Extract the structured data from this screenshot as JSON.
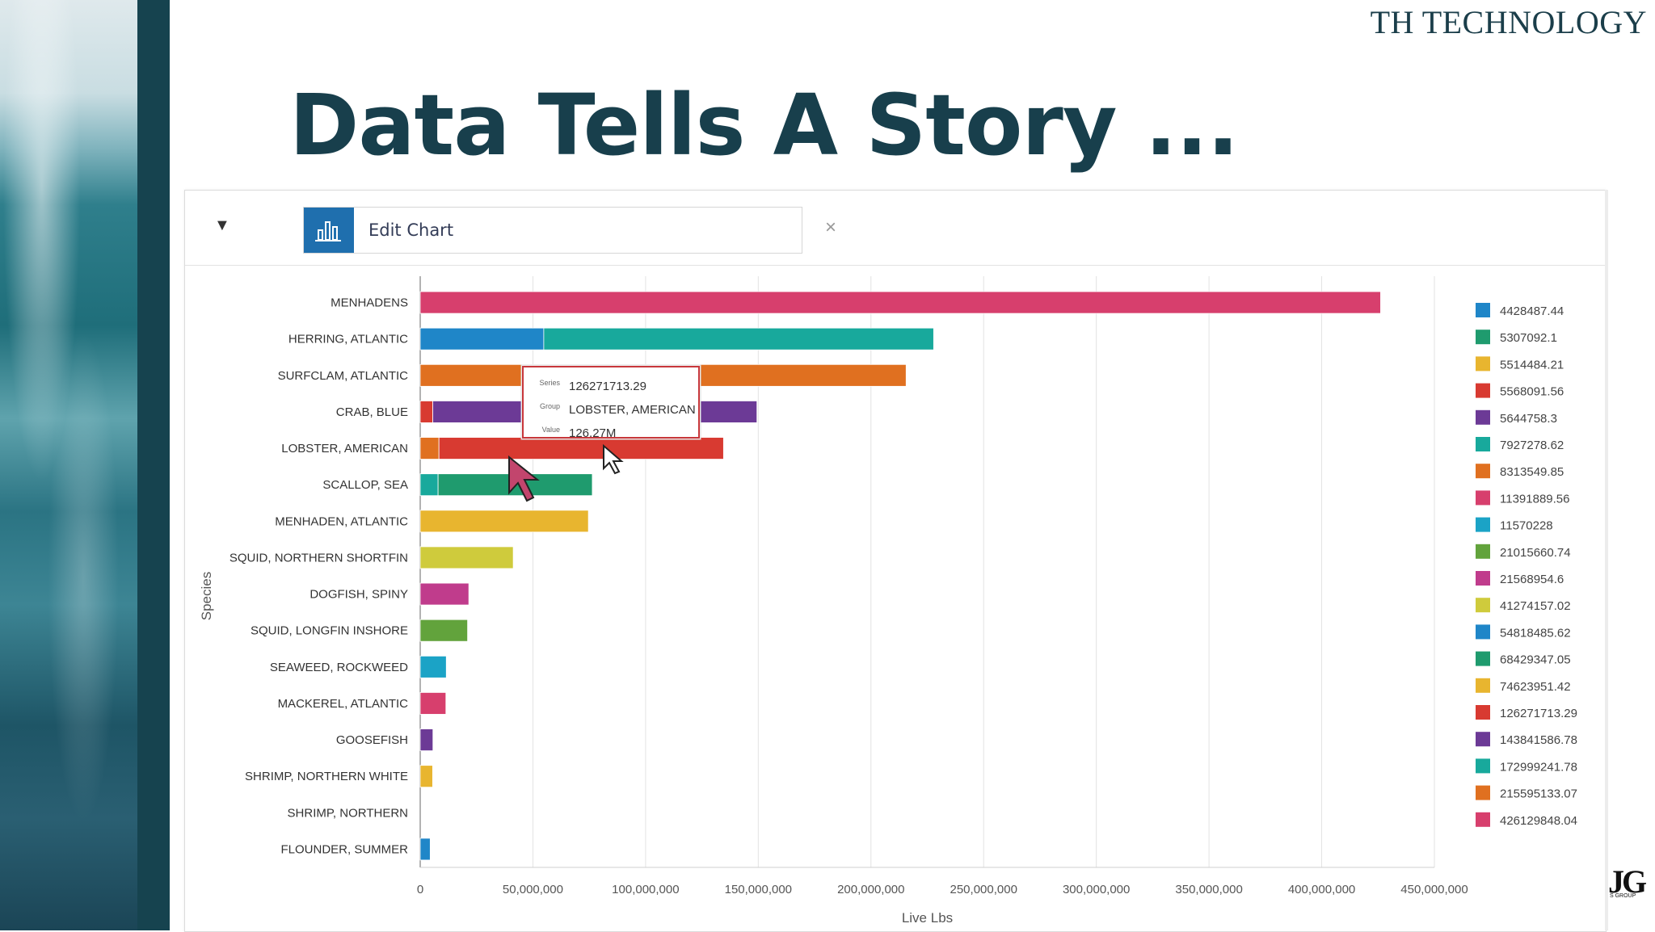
{
  "brand": "TH TECHNOLOGY",
  "slide_title": "Data Tells A Story ...",
  "toolbar": {
    "edit_chart_label": "Edit Chart",
    "close_icon": "×",
    "dropdown_icon": "▼"
  },
  "corner_logo": {
    "text": "JG",
    "sub": "S GROUP"
  },
  "tooltip": {
    "series_label": "Series",
    "series_value": "126271713.29",
    "group_label": "Group",
    "group_value": "LOBSTER, AMERICAN",
    "value_label": "Value",
    "value_value": "126.27M"
  },
  "chart_data": {
    "type": "bar",
    "orientation": "horizontal",
    "stacked": true,
    "xlabel": "Live Lbs",
    "ylabel": "Species",
    "xlim": [
      0,
      450000000
    ],
    "xticks": [
      "0",
      "50,000,000",
      "100,000,000",
      "150,000,000",
      "200,000,000",
      "250,000,000",
      "300,000,000",
      "350,000,000",
      "400,000,000",
      "450,000,000"
    ],
    "grid": true,
    "legend_position": "right",
    "categories": [
      "MENHADENS",
      "HERRING, ATLANTIC",
      "SURFCLAM, ATLANTIC",
      "CRAB, BLUE",
      "LOBSTER, AMERICAN",
      "SCALLOP, SEA",
      "MENHADEN, ATLANTIC",
      "SQUID, NORTHERN SHORTFIN",
      "DOGFISH, SPINY",
      "SQUID, LONGFIN INSHORE",
      "SEAWEED, ROCKWEED",
      "MACKEREL, ATLANTIC",
      "GOOSEFISH",
      "SHRIMP, NORTHERN WHITE",
      "SHRIMP, NORTHERN",
      "FLOUNDER, SUMMER"
    ],
    "series": [
      {
        "name": "4428487.44",
        "color": "#1f86c8",
        "segments": [
          [
            15,
            4428487.44
          ]
        ]
      },
      {
        "name": "5307092.1",
        "color": "#1f9b6e",
        "segments": []
      },
      {
        "name": "5514484.21",
        "color": "#e8b52f",
        "segments": [
          [
            13,
            5514484.21
          ]
        ]
      },
      {
        "name": "5568091.56",
        "color": "#d83a31",
        "segments": [
          [
            3,
            5568091.56
          ]
        ]
      },
      {
        "name": "5644758.3",
        "color": "#6c3a96",
        "segments": [
          [
            12,
            5644758.3
          ]
        ]
      },
      {
        "name": "7927278.62",
        "color": "#18a99c",
        "segments": [
          [
            5,
            7927278.62
          ]
        ]
      },
      {
        "name": "8313549.85",
        "color": "#e07020",
        "segments": [
          [
            4,
            8313549.85
          ]
        ]
      },
      {
        "name": "11391889.56",
        "color": "#d73f6d",
        "segments": [
          [
            11,
            11391889.56
          ]
        ]
      },
      {
        "name": "11570228",
        "color": "#1ba3c6",
        "segments": [
          [
            10,
            11570228
          ]
        ]
      },
      {
        "name": "21015660.74",
        "color": "#62a33c",
        "segments": [
          [
            9,
            21015660.74
          ]
        ]
      },
      {
        "name": "21568954.6",
        "color": "#c03c8c",
        "segments": [
          [
            8,
            21568954.6
          ]
        ]
      },
      {
        "name": "41274157.02",
        "color": "#cfcb3c",
        "segments": [
          [
            7,
            41274157.02
          ]
        ]
      },
      {
        "name": "54818485.62",
        "color": "#1f86c8",
        "segments": [
          [
            1,
            54818485.62
          ]
        ]
      },
      {
        "name": "68429347.05",
        "color": "#1f9b6e",
        "segments": [
          [
            5,
            68429347.05
          ]
        ]
      },
      {
        "name": "74623951.42",
        "color": "#e8b52f",
        "segments": [
          [
            6,
            74623951.42
          ]
        ]
      },
      {
        "name": "126271713.29",
        "color": "#d83a31",
        "segments": [
          [
            4,
            126271713.29
          ]
        ]
      },
      {
        "name": "143841586.78",
        "color": "#6c3a96",
        "segments": [
          [
            3,
            143841586.78
          ]
        ]
      },
      {
        "name": "172999241.78",
        "color": "#18a99c",
        "segments": [
          [
            1,
            172999241.78
          ]
        ]
      },
      {
        "name": "215595133.07",
        "color": "#e07020",
        "segments": [
          [
            2,
            215595133.07
          ]
        ]
      },
      {
        "name": "426129848.04",
        "color": "#d73f6d",
        "segments": [
          [
            0,
            426129848.04
          ]
        ]
      }
    ]
  }
}
